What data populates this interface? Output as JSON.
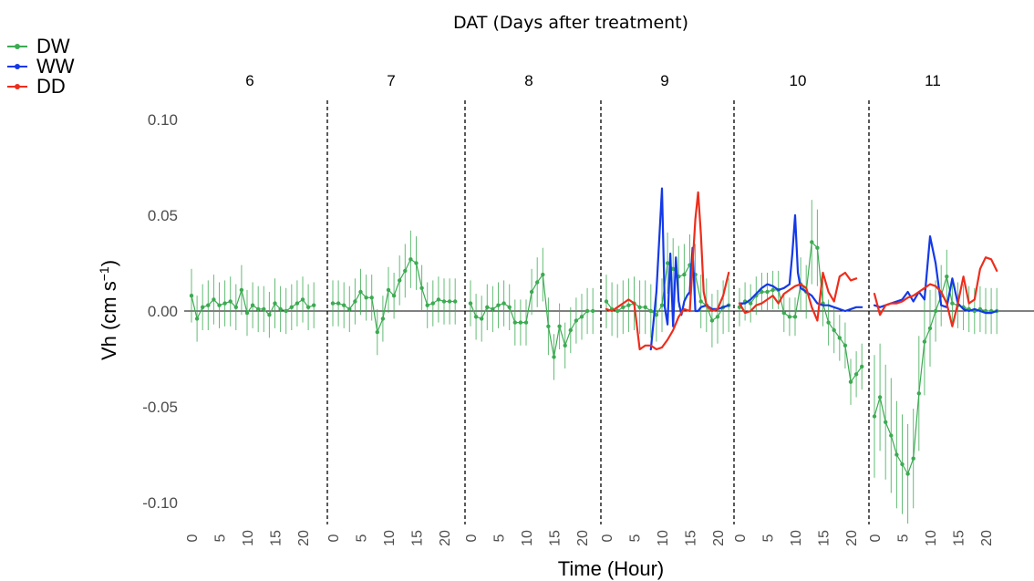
{
  "chart_data": {
    "type": "line",
    "title": "DAT (Days after treatment)",
    "xlabel": "Time (Hour)",
    "ylabel_main": "Vh (cm s",
    "ylabel_sup": "−1",
    "ylabel_close": ")",
    "ylim": [
      -0.1,
      0.1
    ],
    "yticks": [
      "0.10",
      "0.05",
      "0.00",
      "-0.05",
      "-0.10"
    ],
    "ytick_values": [
      0.1,
      0.05,
      0.0,
      -0.05,
      -0.1
    ],
    "panels": [
      "6",
      "7",
      "8",
      "9",
      "10",
      "11"
    ],
    "xtick_labels": [
      "0",
      "5",
      "10",
      "15",
      "20"
    ],
    "xtick_values": [
      0,
      5,
      10,
      15,
      20
    ],
    "grid": false,
    "legend": "top-left",
    "series": [
      {
        "name": "DW",
        "color": "#3cab52",
        "style": "points-with-error-bars",
        "panels": [
          {
            "x": [
              0,
              1,
              2,
              3,
              4,
              5,
              6,
              7,
              8,
              9,
              10,
              11,
              12,
              13,
              14,
              15,
              16,
              17,
              18,
              19,
              20,
              21,
              22
            ],
            "y": [
              0.008,
              -0.004,
              0.002,
              0.003,
              0.006,
              0.003,
              0.004,
              0.005,
              0.002,
              0.011,
              -0.001,
              0.003,
              0.001,
              0.001,
              -0.002,
              0.004,
              0.001,
              0,
              0.002,
              0.004,
              0.006,
              0.002,
              0.003
            ],
            "err": [
              0.014,
              0.012,
              0.012,
              0.013,
              0.013,
              0.012,
              0.012,
              0.013,
              0.012,
              0.013,
              0.012,
              0.012,
              0.012,
              0.012,
              0.012,
              0.013,
              0.012,
              0.012,
              0.012,
              0.012,
              0.012,
              0.012,
              0.012
            ]
          },
          {
            "x": [
              0,
              1,
              2,
              3,
              4,
              5,
              6,
              7,
              8,
              9,
              10,
              11,
              12,
              13,
              14,
              15,
              16,
              17,
              18,
              19,
              20,
              21,
              22
            ],
            "y": [
              0.004,
              0.004,
              0.003,
              0.001,
              0.005,
              0.01,
              0.007,
              0.007,
              -0.011,
              -0.004,
              0.011,
              0.008,
              0.016,
              0.021,
              0.027,
              0.025,
              0.012,
              0.003,
              0.004,
              0.006,
              0.005,
              0.005,
              0.005
            ],
            "err": [
              0.012,
              0.012,
              0.012,
              0.012,
              0.012,
              0.012,
              0.012,
              0.012,
              0.012,
              0.012,
              0.012,
              0.012,
              0.013,
              0.014,
              0.015,
              0.014,
              0.012,
              0.012,
              0.012,
              0.012,
              0.012,
              0.012,
              0.012
            ]
          },
          {
            "x": [
              0,
              1,
              2,
              3,
              4,
              5,
              6,
              7,
              8,
              9,
              10,
              11,
              12,
              13,
              14,
              15,
              16,
              17,
              18,
              19,
              20,
              21,
              22
            ],
            "y": [
              0.004,
              -0.003,
              -0.004,
              0.002,
              0.001,
              0.003,
              0.004,
              0.002,
              -0.006,
              -0.006,
              -0.006,
              0.01,
              0.015,
              0.019,
              -0.008,
              -0.024,
              -0.008,
              -0.018,
              -0.01,
              -0.005,
              -0.003,
              0,
              0
            ],
            "err": [
              0.012,
              0.012,
              0.012,
              0.012,
              0.012,
              0.012,
              0.012,
              0.012,
              0.012,
              0.012,
              0.012,
              0.012,
              0.013,
              0.014,
              0.015,
              0.012,
              0.012,
              0.012,
              0.012,
              0.012,
              0.012,
              0.012,
              0.012
            ]
          },
          {
            "x": [
              0,
              1,
              2,
              3,
              4,
              5,
              6,
              7,
              8,
              9,
              10,
              11,
              12,
              13,
              14,
              15,
              16,
              17,
              18,
              19,
              20,
              21,
              22
            ],
            "y": [
              0.005,
              0.001,
              0,
              0.002,
              0.003,
              0.004,
              0.002,
              0.002,
              0,
              -0.002,
              0.003,
              0.025,
              0.022,
              0.018,
              0.019,
              0.024,
              0.019,
              0.005,
              0.003,
              -0.005,
              -0.003,
              0.002,
              0.003
            ],
            "err": [
              0.014,
              0.014,
              0.014,
              0.014,
              0.014,
              0.014,
              0.014,
              0.014,
              0.014,
              0.014,
              0.014,
              0.016,
              0.016,
              0.016,
              0.016,
              0.016,
              0.016,
              0.014,
              0.014,
              0.014,
              0.014,
              0.014,
              0.014
            ]
          },
          {
            "x": [
              0,
              1,
              2,
              3,
              4,
              5,
              6,
              7,
              8,
              9,
              10,
              11,
              12,
              13,
              14,
              15,
              16,
              17,
              18,
              19,
              20,
              21,
              22
            ],
            "y": [
              0.002,
              0.005,
              0.004,
              0.008,
              0.01,
              0.01,
              0.011,
              0.011,
              -0.001,
              -0.003,
              -0.003,
              0.014,
              0.01,
              0.036,
              0.033,
              0.004,
              -0.006,
              -0.01,
              -0.014,
              -0.018,
              -0.037,
              -0.033,
              -0.029
            ],
            "err": [
              0.01,
              0.01,
              0.01,
              0.01,
              0.01,
              0.01,
              0.01,
              0.01,
              0.01,
              0.01,
              0.01,
              0.014,
              0.014,
              0.022,
              0.02,
              0.012,
              0.012,
              0.012,
              0.012,
              0.012,
              0.012,
              0.012,
              0.012
            ]
          },
          {
            "x": [
              0,
              1,
              2,
              3,
              4,
              5,
              6,
              7,
              8,
              9,
              10,
              11,
              12,
              13,
              14,
              15,
              16,
              17,
              18,
              19,
              20,
              21,
              22
            ],
            "y": [
              -0.055,
              -0.045,
              -0.058,
              -0.065,
              -0.075,
              -0.08,
              -0.085,
              -0.077,
              -0.043,
              -0.016,
              -0.009,
              0,
              0.008,
              0.018,
              0.004,
              0.003,
              0.002,
              0.001,
              0,
              0.001,
              0,
              0,
              0
            ],
            "err": [
              0.032,
              0.028,
              0.03,
              0.03,
              0.028,
              0.026,
              0.026,
              0.026,
              0.03,
              0.028,
              0.02,
              0.016,
              0.016,
              0.014,
              0.012,
              0.012,
              0.012,
              0.012,
              0.012,
              0.012,
              0.012,
              0.012,
              0.012
            ]
          }
        ]
      },
      {
        "name": "WW",
        "color": "#1339e8",
        "style": "line",
        "panels": [
          null,
          null,
          null,
          {
            "x": [
              8,
              9,
              10,
              10.5,
              11,
              11.5,
              12,
              12.5,
              13,
              13.5,
              14,
              14.5,
              15,
              15.5,
              16,
              16.5,
              17,
              18,
              19,
              20,
              21,
              22
            ],
            "y": [
              -0.02,
              0.01,
              0.064,
              0.002,
              -0.007,
              0.03,
              -0.008,
              0.028,
              0.005,
              -0.002,
              0.005,
              0.008,
              0.01,
              0.033,
              0.0,
              0.0,
              0.002,
              0.003,
              0.001,
              0.001,
              0.002,
              0.003
            ]
          },
          {
            "x": [
              0,
              1,
              2,
              3,
              4,
              5,
              6,
              7,
              8,
              9,
              9.5,
              10,
              10.5,
              11,
              12,
              13,
              14,
              15,
              16,
              17,
              18,
              19,
              20,
              21,
              22
            ],
            "y": [
              0.004,
              0.004,
              0.006,
              0.009,
              0.012,
              0.014,
              0.013,
              0.011,
              0.012,
              0.014,
              0.03,
              0.05,
              0.02,
              0.012,
              0.01,
              0.008,
              0.004,
              0.003,
              0.003,
              0.002,
              0.001,
              0.0,
              0.001,
              0.002,
              0.002
            ]
          },
          {
            "x": [
              0,
              1,
              2,
              3,
              4,
              5,
              6,
              7,
              8,
              9,
              10,
              11,
              12,
              13,
              14,
              15,
              16,
              17,
              18,
              19,
              20,
              21,
              22
            ],
            "y": [
              0.003,
              0.002,
              0.003,
              0.004,
              0.005,
              0.006,
              0.01,
              0.005,
              0.01,
              0.006,
              0.039,
              0.025,
              0.003,
              0.002,
              0.017,
              0.004,
              0.001,
              0.0,
              0.001,
              0.0,
              -0.001,
              -0.001,
              0.0
            ]
          }
        ]
      },
      {
        "name": "DD",
        "color": "#ee2d1c",
        "style": "line",
        "panels": [
          null,
          null,
          null,
          {
            "x": [
              0,
              1,
              2,
              3,
              4,
              5,
              6,
              7,
              8,
              9,
              10,
              11,
              12,
              13,
              14,
              15,
              16,
              16.5,
              17,
              17.5,
              18,
              19,
              20,
              21,
              22
            ],
            "y": [
              0.001,
              0.0,
              0.002,
              0.004,
              0.006,
              0.004,
              -0.02,
              -0.018,
              -0.018,
              -0.02,
              -0.019,
              -0.015,
              -0.01,
              -0.003,
              0.001,
              0.0,
              0.048,
              0.062,
              0.04,
              0.01,
              0.003,
              0.0,
              0.001,
              0.008,
              0.02
            ]
          },
          {
            "x": [
              0,
              1,
              2,
              3,
              4,
              5,
              6,
              7,
              8,
              9,
              10,
              11,
              12,
              13,
              14,
              15,
              16,
              17,
              18,
              19,
              20,
              21
            ],
            "y": [
              0.004,
              -0.001,
              0.0,
              0.003,
              0.004,
              0.006,
              0.008,
              0.004,
              0.009,
              0.011,
              0.013,
              0.014,
              0.012,
              0.002,
              -0.005,
              0.02,
              0.01,
              0.005,
              0.018,
              0.02,
              0.016,
              0.017
            ]
          },
          {
            "x": [
              0,
              1,
              2,
              3,
              4,
              5,
              6,
              7,
              8,
              9,
              10,
              11,
              12,
              13,
              14,
              15,
              16,
              17,
              18,
              19,
              20,
              21,
              22
            ],
            "y": [
              0.009,
              -0.002,
              0.003,
              0.004,
              0.004,
              0.005,
              0.007,
              0.008,
              0.01,
              0.012,
              0.014,
              0.013,
              0.01,
              0.004,
              -0.008,
              0.004,
              0.018,
              0.004,
              0.006,
              0.022,
              0.028,
              0.027,
              0.021
            ]
          }
        ]
      }
    ]
  }
}
